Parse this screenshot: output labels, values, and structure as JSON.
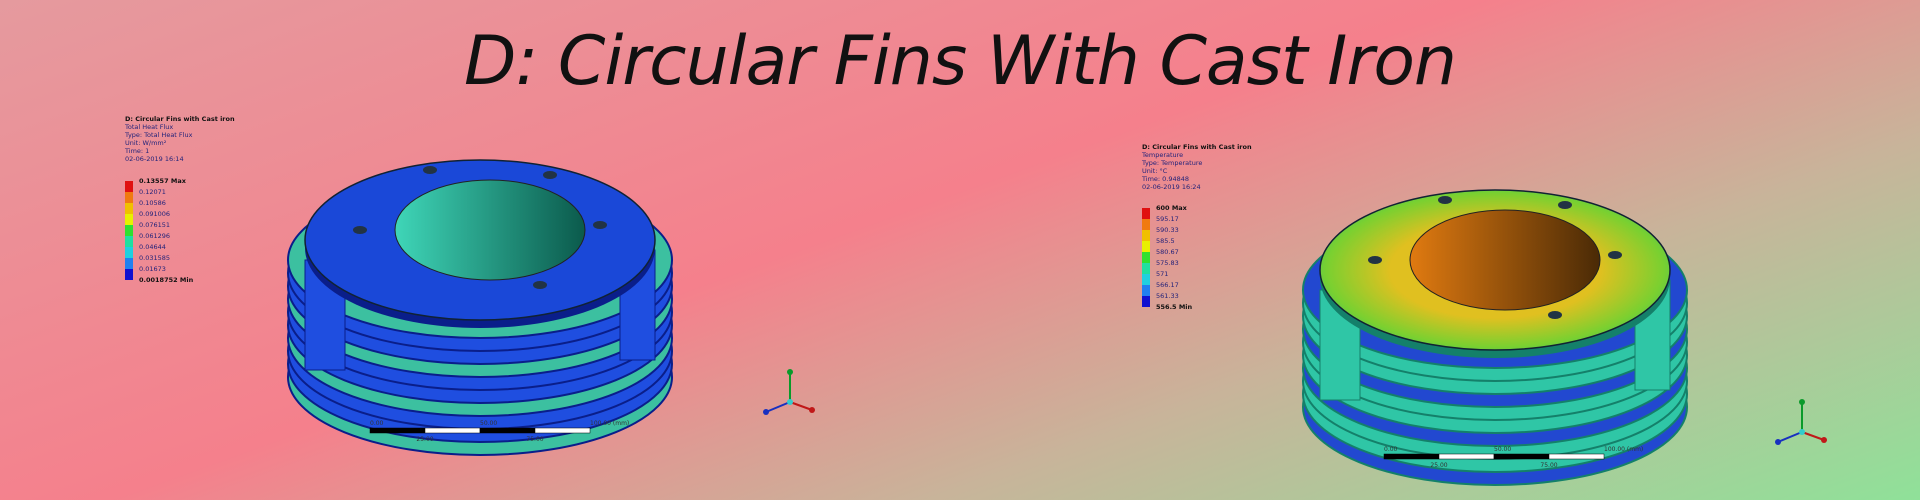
{
  "title": "D: Circular Fins With Cast Iron",
  "panels": [
    {
      "info": [
        "D: Circular Fins with Cast iron",
        "Total Heat Flux",
        "Type: Total Heat Flux",
        "Unit: W/mm²",
        "Time: 1",
        "02-06-2019 16:14"
      ],
      "legend": [
        "0.13557 Max",
        "0.12071",
        "0.10586",
        "0.091006",
        "0.076151",
        "0.061296",
        "0.04644",
        "0.031585",
        "0.01673",
        "0.0018752 Min"
      ],
      "scale_top": [
        "0.00",
        "50.00",
        "100.00 (mm)"
      ],
      "scale_bottom": [
        "25.00",
        "75.00"
      ]
    },
    {
      "info": [
        "D: Circular Fins with Cast iron",
        "Temperature",
        "Type: Temperature",
        "Unit: °C",
        "Time: 0.94848",
        "02-06-2019 16:24"
      ],
      "legend": [
        "600 Max",
        "595.17",
        "590.33",
        "585.5",
        "580.67",
        "575.83",
        "571",
        "566.17",
        "561.33",
        "556.5 Min"
      ],
      "scale_top": [
        "0.00",
        "50.00",
        "100.00 (mm)"
      ],
      "scale_bottom": [
        "25.00",
        "75.00"
      ]
    }
  ]
}
